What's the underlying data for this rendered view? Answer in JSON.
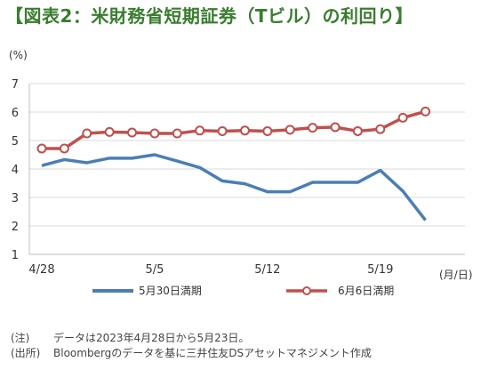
{
  "title": "【図表2：米財務省短期証券（Tビル）の利回り】",
  "chart_data": {
    "type": "line",
    "ylabel": "(%)",
    "xlabel": "(月/日)",
    "ylim": [
      1,
      7
    ],
    "yticks": [
      1,
      2,
      3,
      4,
      5,
      6,
      7
    ],
    "xlim": [
      0,
      18.2
    ],
    "x_ticks": [
      {
        "x": 0,
        "label": "4/28"
      },
      {
        "x": 5,
        "label": "5/5"
      },
      {
        "x": 10,
        "label": "5/12"
      },
      {
        "x": 15,
        "label": "5/19"
      }
    ],
    "x": [
      0,
      1,
      2,
      3,
      4,
      5,
      6,
      7,
      8,
      9,
      10,
      11,
      12,
      13,
      14,
      15,
      16,
      17
    ],
    "series": [
      {
        "name": "5月30日満期",
        "color": "#4a7eb5",
        "marker": "none",
        "values": [
          4.12,
          4.33,
          4.22,
          4.38,
          4.38,
          4.5,
          4.28,
          4.05,
          3.58,
          3.48,
          3.2,
          3.2,
          3.53,
          3.53,
          3.53,
          3.95,
          3.22,
          2.2
        ]
      },
      {
        "name": "6月6日満期",
        "color": "#c0504d",
        "marker": "circle",
        "values": [
          4.72,
          4.72,
          5.25,
          5.3,
          5.28,
          5.25,
          5.25,
          5.35,
          5.33,
          5.35,
          5.33,
          5.38,
          5.45,
          5.47,
          5.33,
          5.4,
          5.8,
          6.02
        ]
      }
    ],
    "grid": "horizontal",
    "legend": "bottom"
  },
  "notes": [
    {
      "key": "(注)",
      "text": "データは2023年4月28日から5月23日。"
    },
    {
      "key": "(出所)",
      "text": "Bloombergのデータを基に三井住友DSアセットマネジメント作成"
    }
  ]
}
